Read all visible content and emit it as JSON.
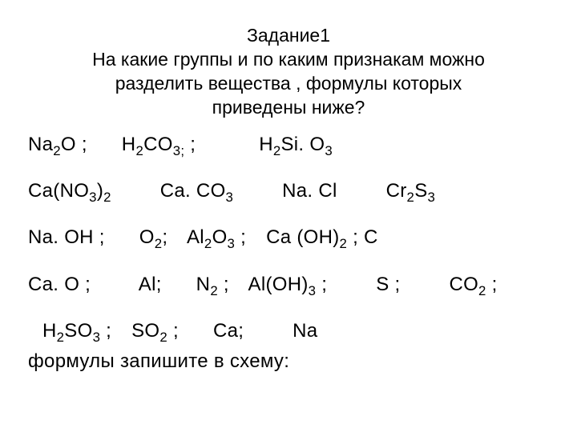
{
  "title": {
    "line1": "Задание1",
    "line2": "На какие группы и по каким признакам можно",
    "line3": "разделить вещества , формулы которых",
    "line4": "приведены ниже?"
  },
  "row1": {
    "f1_a": "Na",
    "f1_s1": "2",
    "f1_b": "O ;",
    "f2_a": "H",
    "f2_s1": "2",
    "f2_b": "CO",
    "f2_s2": "3;",
    "f2_c": " ;",
    "f3_a": "H",
    "f3_s1": "2",
    "f3_b": "Si. O",
    "f3_s2": "3"
  },
  "row2": {
    "f1_a": "Ca(NO",
    "f1_s1": "3",
    "f1_b": ")",
    "f1_s2": "2",
    "f2_a": "Ca. CO",
    "f2_s1": "3",
    "f3_a": "Na. Cl",
    "f4_a": "Cr",
    "f4_s1": "2",
    "f4_b": "S",
    "f4_s2": "3"
  },
  "row3": {
    "f1_a": "Na. OH ;",
    "f2_a": "O",
    "f2_s1": "2",
    "f2_b": ";",
    "f3_a": "Al",
    "f3_s1": "2",
    "f3_b": "O",
    "f3_s2": "3",
    "f3_c": " ;",
    "f4_a": "Ca (OH)",
    "f4_s1": "2",
    "f4_b": " ; C"
  },
  "row4": {
    "f1_a": "Ca. O ;",
    "f2_a": "Al;",
    "f3_a": "N",
    "f3_s1": "2",
    "f3_b": " ;",
    "f4_a": "Al(OH)",
    "f4_s1": "3",
    "f4_b": " ;",
    "f5_a": "S ;",
    "f6_a": "CO",
    "f6_s1": "2",
    "f6_b": " ;"
  },
  "row5": {
    "f1_a": "H",
    "f1_s1": "2",
    "f1_b": "SO",
    "f1_s2": "3",
    "f1_c": " ;",
    "f2_a": "SO",
    "f2_s1": "2",
    "f2_b": " ;",
    "f3_a": "Ca;",
    "f4_a": "Na"
  },
  "footer": "формулы запишите в схему:",
  "colors": {
    "text": "#000000",
    "background": "#ffffff"
  },
  "typography": {
    "title_fontsize": 23,
    "body_fontsize": 24,
    "font_family": "Arial"
  }
}
